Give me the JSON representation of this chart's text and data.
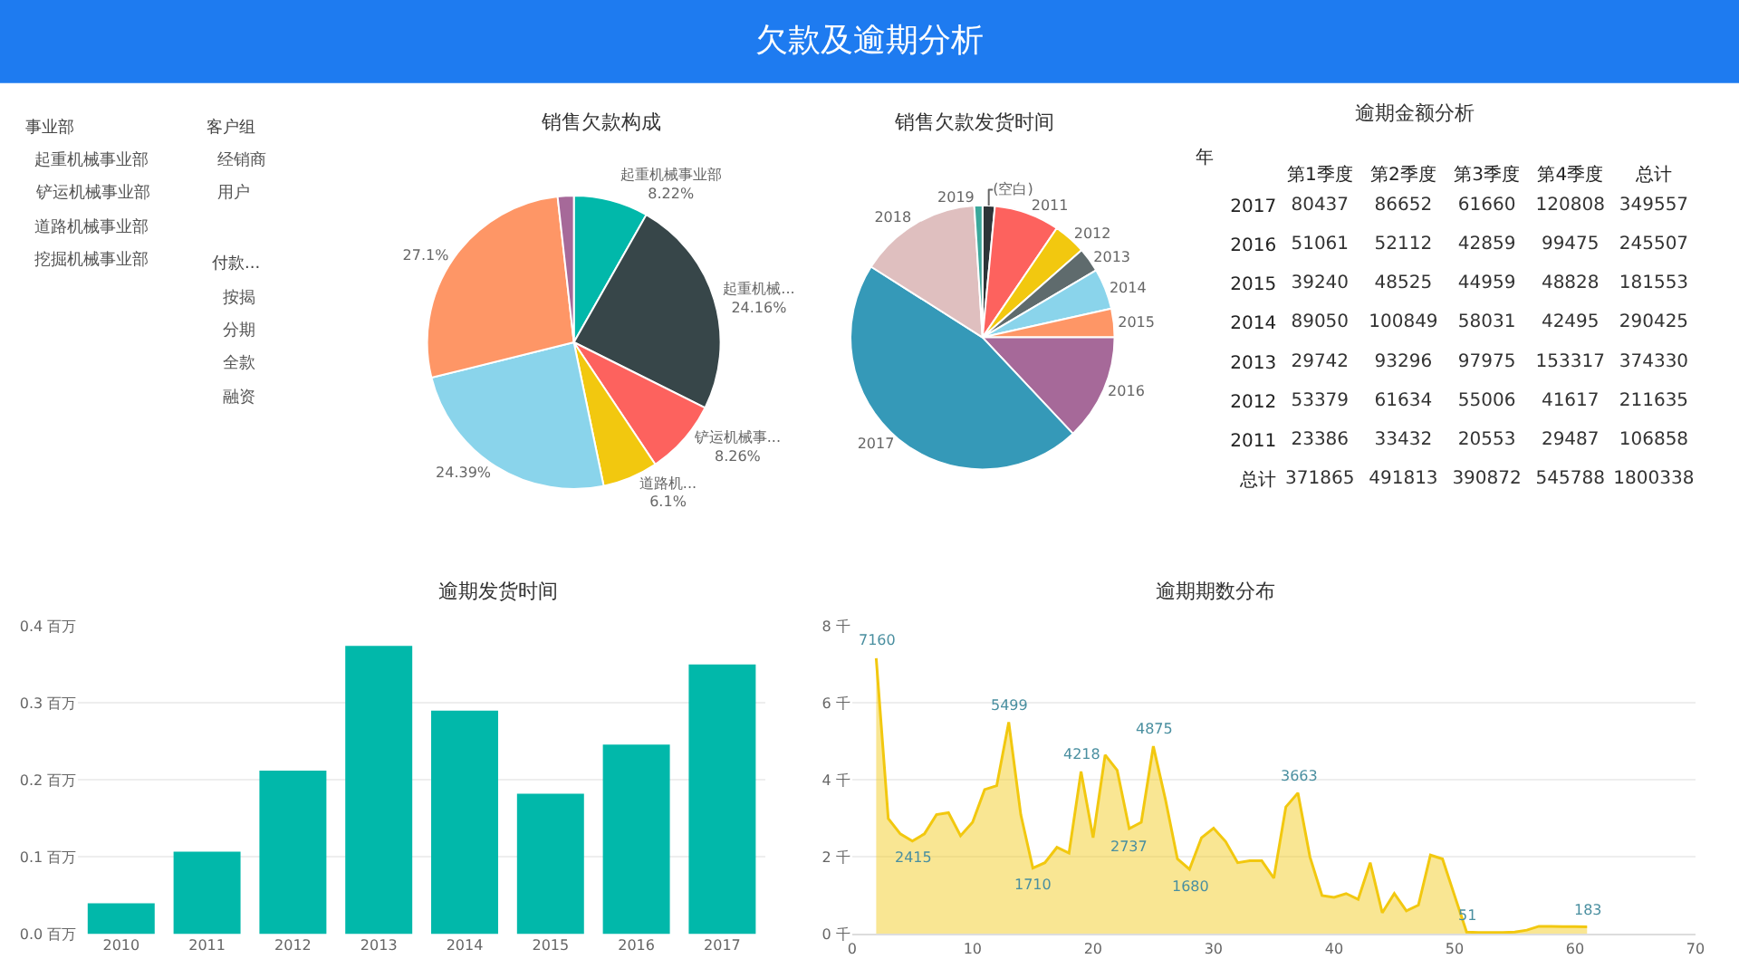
{
  "chart_data": [
    {
      "type": "other",
      "title": "欠款及逾期分析"
    },
    {
      "type": "other",
      "title": "事业部",
      "categories": [
        "起重机械事业部",
        "铲运机械事业部",
        "道路机械事业部",
        "挖掘机械事业部"
      ]
    },
    {
      "type": "other",
      "title": "客户组",
      "categories": [
        "经销商",
        "用户"
      ]
    },
    {
      "type": "other",
      "title": "付款...",
      "categories": [
        "按揭",
        "分期",
        "全款",
        "融资"
      ]
    },
    {
      "type": "pie",
      "title": "销售欠款构成",
      "categories": [
        "起重机械事业部",
        "起重机械...",
        "铲运机械事...",
        "道路机...",
        null,
        null,
        null
      ],
      "values": [
        8.22,
        24.16,
        8.26,
        6.1,
        24.39,
        27.1,
        1.77
      ],
      "value_labels": [
        "8.22%",
        "24.16%",
        "8.26%",
        "6.1%",
        "24.39%",
        "27.1%",
        null
      ],
      "colors": [
        "#01b8aa",
        "#374649",
        "#fd625e",
        "#f2c80f",
        "#8ad4eb",
        "#fe9666",
        "#a66999"
      ]
    },
    {
      "type": "pie",
      "title": "销售欠款发货时间",
      "categories": [
        "(空白)",
        "2011",
        "2012",
        "2013",
        "2014",
        "2015",
        "2016",
        "2017",
        "2018",
        "2019"
      ],
      "values": [
        1.5,
        8,
        4,
        3,
        5,
        3.5,
        13,
        46,
        15,
        1
      ],
      "colors": [
        "#2d3538",
        "#fd625e",
        "#f2c80f",
        "#5f6b6d",
        "#8ad4eb",
        "#fe9666",
        "#a66999",
        "#3599b8",
        "#dfbfbf",
        "#3aa89b"
      ]
    },
    {
      "type": "heatmap",
      "title": "逾期金额分析",
      "ylabel": "年",
      "categories": [
        "第1季度",
        "第2季度",
        "第3季度",
        "第4季度",
        "总计"
      ],
      "y_categories": [
        "2017",
        "2016",
        "2015",
        "2014",
        "2013",
        "2012",
        "2011",
        "总计"
      ],
      "cells": [
        [
          80437,
          86652,
          61660,
          120808,
          349557
        ],
        [
          51061,
          52112,
          42859,
          99475,
          245507
        ],
        [
          39240,
          48525,
          44959,
          48828,
          181553
        ],
        [
          89050,
          100849,
          58031,
          42495,
          290425
        ],
        [
          29742,
          93296,
          97975,
          153317,
          374330
        ],
        [
          53379,
          61634,
          55006,
          41617,
          211635
        ],
        [
          23386,
          33432,
          20553,
          29487,
          106858
        ],
        [
          371865,
          491813,
          390872,
          545788,
          1800338
        ]
      ],
      "data_labels": true
    },
    {
      "type": "bar",
      "title": "逾期发货时间",
      "categories": [
        "2010",
        "2011",
        "2012",
        "2013",
        "2014",
        "2015",
        "2016",
        "2017"
      ],
      "values": [
        0.04,
        0.107,
        0.212,
        0.374,
        0.29,
        0.182,
        0.246,
        0.35
      ],
      "color": "#01b8aa",
      "ylim": [
        0,
        0.4
      ],
      "yticks": [
        {
          "value": 0,
          "label": "0.0 百万"
        },
        {
          "value": 0.1,
          "label": "0.1 百万"
        },
        {
          "value": 0.2,
          "label": "0.2 百万"
        },
        {
          "value": 0.3,
          "label": "0.3 百万"
        },
        {
          "value": 0.4,
          "label": "0.4 百万"
        }
      ],
      "grid": "y"
    },
    {
      "type": "area",
      "title": "逾期期数分布",
      "x": [
        2,
        3,
        4,
        5,
        6,
        7,
        8,
        9,
        10,
        11,
        12,
        13,
        14,
        15,
        16,
        17,
        18,
        19,
        20,
        21,
        22,
        23,
        24,
        25,
        26,
        27,
        28,
        29,
        30,
        31,
        32,
        33,
        34,
        35,
        36,
        37,
        38,
        39,
        40,
        41,
        42,
        43,
        44,
        45,
        46,
        47,
        48,
        49,
        50,
        51,
        52,
        53,
        54,
        55,
        56,
        57,
        58,
        59,
        60,
        61
      ],
      "values": [
        7.16,
        3.0,
        2.6,
        2.415,
        2.6,
        3.1,
        3.15,
        2.55,
        2.9,
        3.75,
        3.85,
        5.499,
        3.1,
        1.71,
        1.85,
        2.25,
        2.1,
        4.218,
        2.5,
        4.65,
        4.25,
        2.737,
        2.9,
        4.875,
        3.5,
        1.95,
        1.68,
        2.5,
        2.75,
        2.4,
        1.85,
        1.9,
        1.9,
        1.45,
        3.3,
        3.663,
        2.0,
        1.0,
        0.95,
        1.05,
        0.9,
        1.85,
        0.55,
        1.05,
        0.6,
        0.75,
        2.05,
        1.95,
        1.0,
        0.051,
        0.04,
        0.04,
        0.04,
        0.05,
        0.1,
        0.2,
        0.2,
        0.19,
        0.19,
        0.183
      ],
      "annotations": [
        {
          "text": "7160",
          "x": 2,
          "y": 7.16
        },
        {
          "text": "2415",
          "x": 5,
          "y": 2.415
        },
        {
          "text": "5499",
          "x": 13,
          "y": 5.499
        },
        {
          "text": "1710",
          "x": 15,
          "y": 1.71
        },
        {
          "text": "4218",
          "x": 19,
          "y": 4.218
        },
        {
          "text": "2737",
          "x": 23,
          "y": 2.737
        },
        {
          "text": "4875",
          "x": 25,
          "y": 4.875
        },
        {
          "text": "1680",
          "x": 28,
          "y": 1.68
        },
        {
          "text": "3663",
          "x": 37,
          "y": 3.663
        },
        {
          "text": "51",
          "x": 51,
          "y": 0.051
        },
        {
          "text": "183",
          "x": 61,
          "y": 0.183
        }
      ],
      "color": "#f2c80f",
      "xlim": [
        0,
        70
      ],
      "xticks": [
        0,
        10,
        20,
        30,
        40,
        50,
        60,
        70
      ],
      "ylim": [
        0,
        8
      ],
      "yticks": [
        {
          "value": 0,
          "label": "0 千"
        },
        {
          "value": 2,
          "label": "2 千"
        },
        {
          "value": 4,
          "label": "4 千"
        },
        {
          "value": 6,
          "label": "6 千"
        },
        {
          "value": 8,
          "label": "8 千"
        }
      ],
      "grid": "y"
    }
  ]
}
